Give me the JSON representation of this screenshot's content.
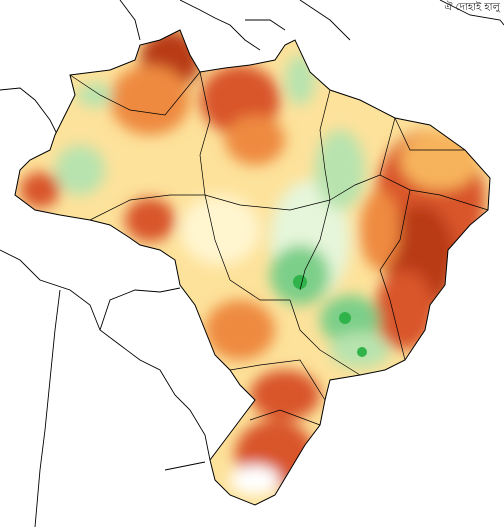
{
  "map": {
    "background": "#ffffff",
    "country_fill_default": "#fdeaa6",
    "border_color": "#000000",
    "palette": {
      "dark_red": "#b83a14",
      "red_orange": "#d9542a",
      "orange": "#ee8a3f",
      "light_orange": "#f7b35b",
      "yellow": "#fde29b",
      "pale_yellow": "#fff5cf",
      "pale_green": "#e6f6da",
      "light_green": "#b8e3ae",
      "green": "#7ccf89",
      "strong_green": "#2fb34a"
    },
    "corner_note": "ঐ দোহাই হালু"
  }
}
